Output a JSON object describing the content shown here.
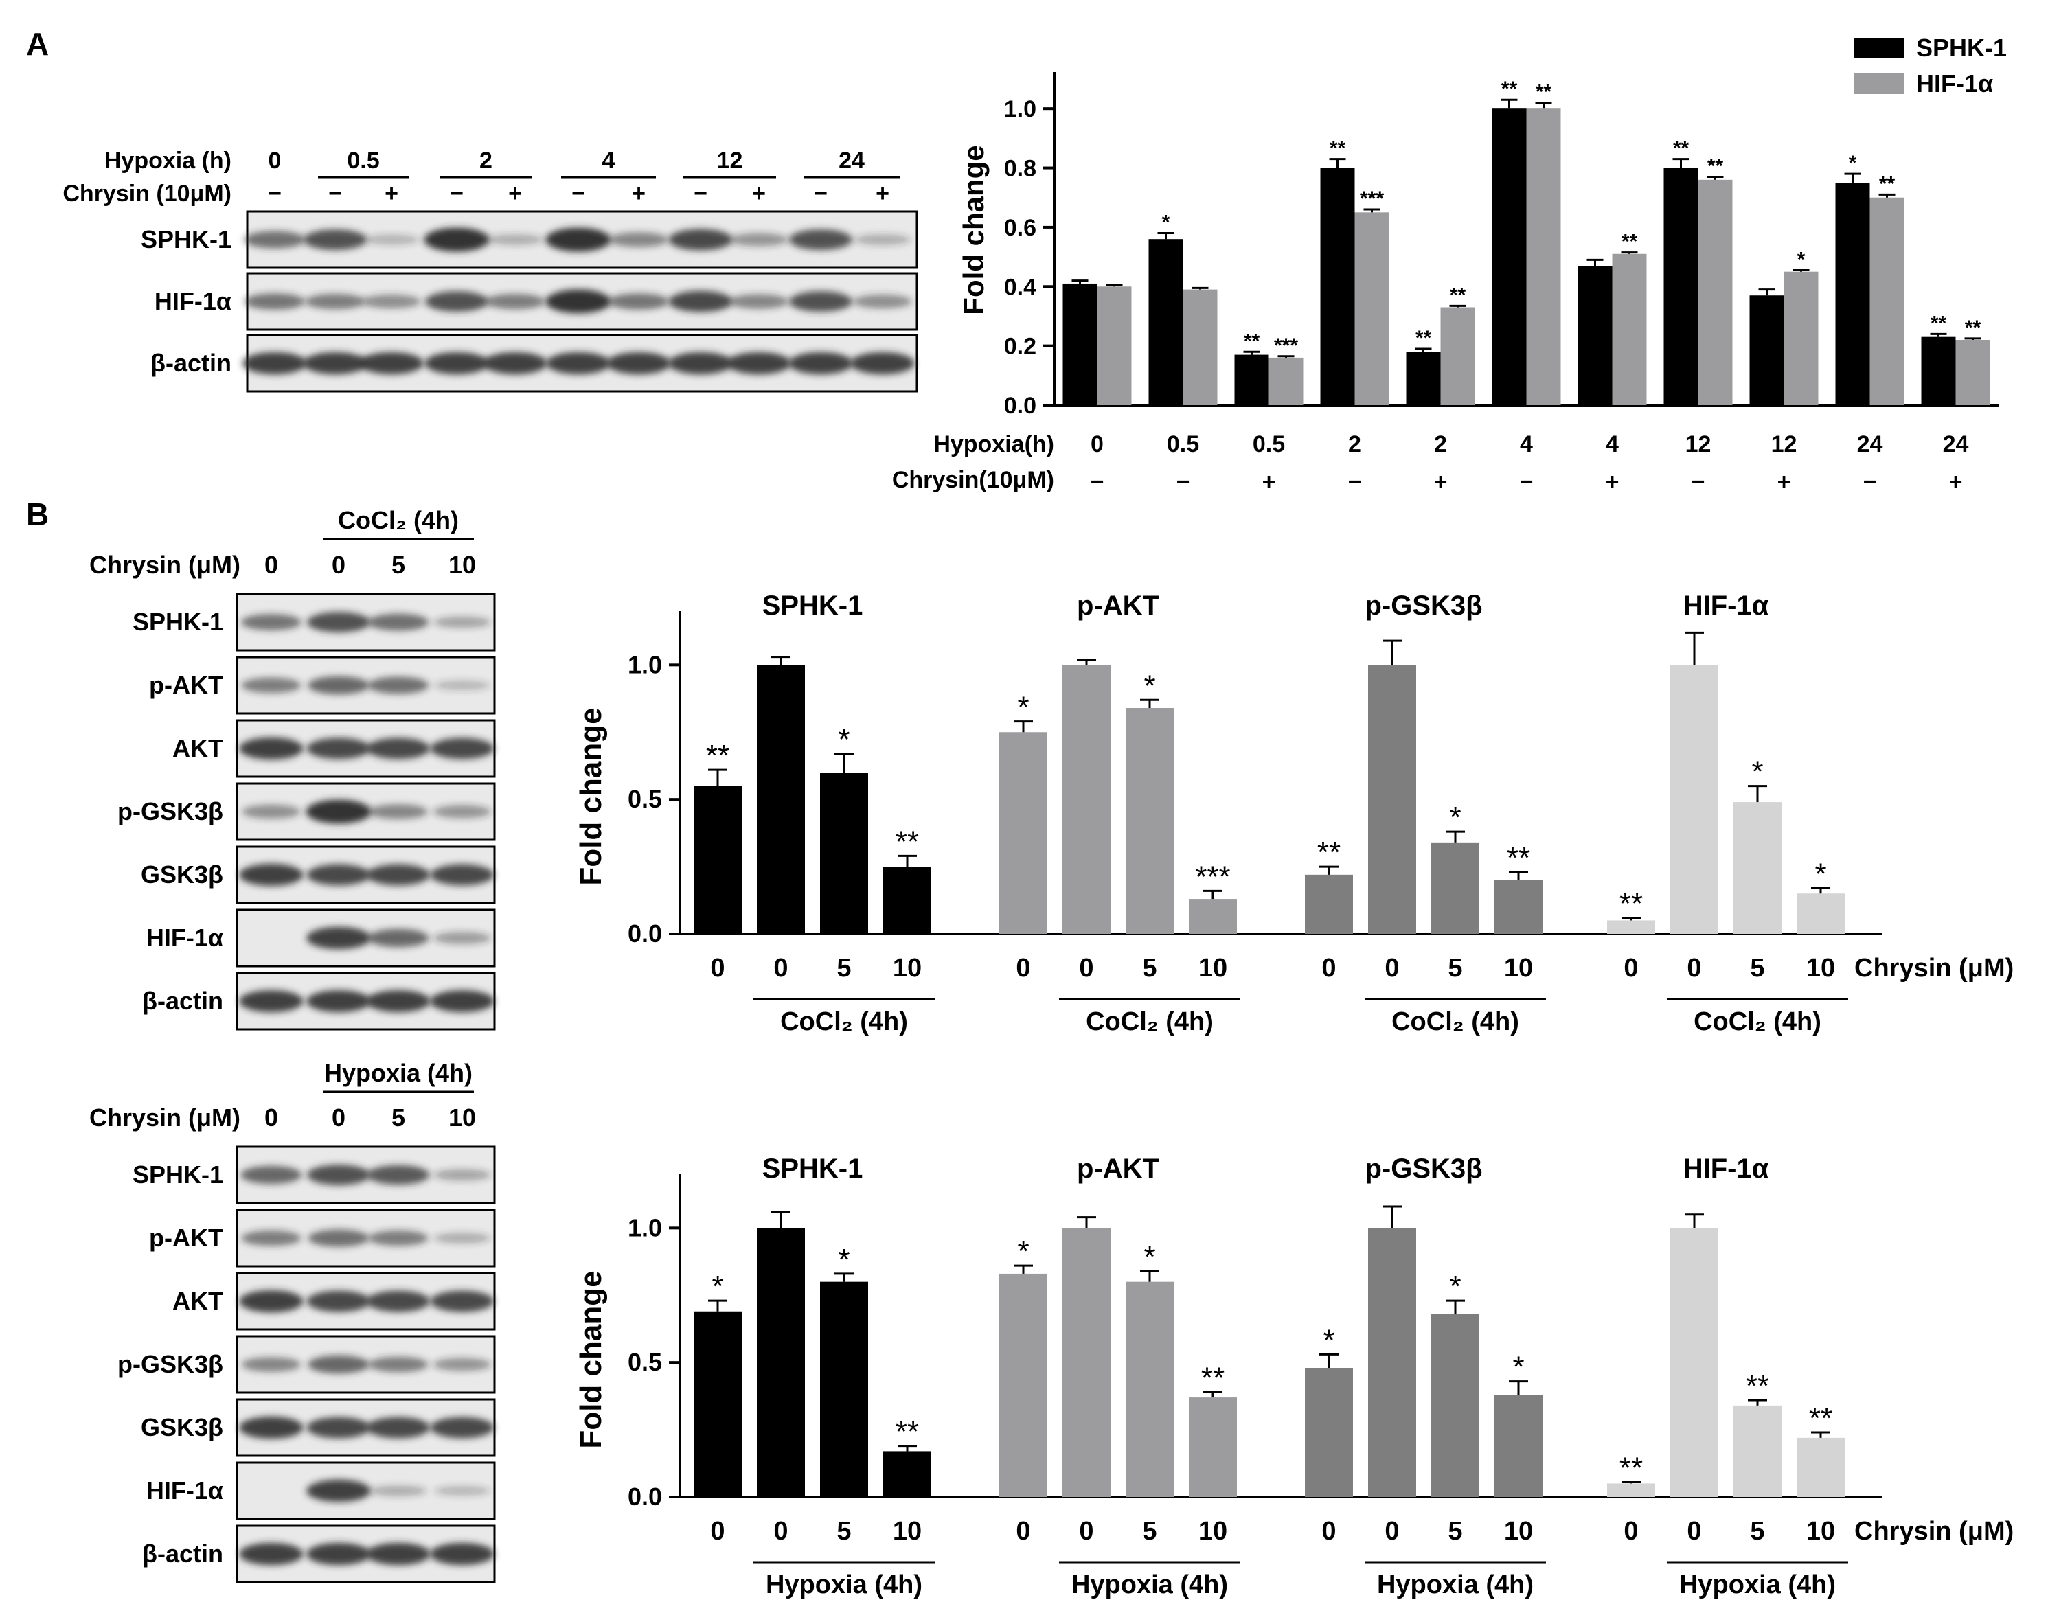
{
  "panels": {
    "a_label": "A",
    "b_label": "B"
  },
  "colors": {
    "black": "#000000",
    "mid_gray": "#9c9c9e",
    "dark_gray": "#7e7e7e",
    "light_gray": "#d4d4d4",
    "blot_bg": "#e9e9e9",
    "band": "#2a2a2a"
  },
  "blot_a": {
    "header_row1_label": "Hypoxia (h)",
    "header_row2_label": "Chrysin (10μM)",
    "time_labels": [
      "0",
      "0.5",
      "2",
      "4",
      "12",
      "24"
    ],
    "signs": [
      "−",
      "−",
      "+",
      "−",
      "+",
      "−",
      "+",
      "−",
      "+",
      "−",
      "+"
    ],
    "rows": [
      "SPHK-1",
      "HIF-1α",
      "β-actin"
    ],
    "intensity": [
      [
        0.55,
        0.75,
        0.12,
        0.95,
        0.15,
        0.95,
        0.4,
        0.8,
        0.3,
        0.75,
        0.15
      ],
      [
        0.5,
        0.45,
        0.35,
        0.75,
        0.45,
        0.95,
        0.5,
        0.8,
        0.4,
        0.75,
        0.35
      ],
      [
        0.85,
        0.85,
        0.85,
        0.85,
        0.85,
        0.85,
        0.85,
        0.85,
        0.85,
        0.85,
        0.85
      ]
    ]
  },
  "blot_b1": {
    "treatment_label": "CoCl₂ (4h)",
    "conc_label": "Chrysin (μM)",
    "conc": [
      "0",
      "0",
      "5",
      "10"
    ],
    "rows": [
      "SPHK-1",
      "p-AKT",
      "AKT",
      "p-GSK3β",
      "GSK3β",
      "HIF-1α",
      "β-actin"
    ],
    "intensity": [
      [
        0.5,
        0.75,
        0.55,
        0.2
      ],
      [
        0.45,
        0.6,
        0.55,
        0.1
      ],
      [
        0.85,
        0.8,
        0.8,
        0.8
      ],
      [
        0.35,
        0.95,
        0.4,
        0.3
      ],
      [
        0.85,
        0.8,
        0.8,
        0.8
      ],
      [
        0.0,
        0.85,
        0.6,
        0.25
      ],
      [
        0.85,
        0.85,
        0.85,
        0.85
      ]
    ]
  },
  "blot_b2": {
    "treatment_label": "Hypoxia (4h)",
    "conc_label": "Chrysin (μM)",
    "conc": [
      "0",
      "0",
      "5",
      "10"
    ],
    "rows": [
      "SPHK-1",
      "p-AKT",
      "AKT",
      "p-GSK3β",
      "GSK3β",
      "HIF-1α",
      "β-actin"
    ],
    "intensity": [
      [
        0.6,
        0.75,
        0.7,
        0.2
      ],
      [
        0.45,
        0.55,
        0.45,
        0.15
      ],
      [
        0.85,
        0.8,
        0.8,
        0.8
      ],
      [
        0.4,
        0.6,
        0.45,
        0.3
      ],
      [
        0.85,
        0.8,
        0.8,
        0.8
      ],
      [
        0.0,
        0.85,
        0.15,
        0.1
      ],
      [
        0.85,
        0.85,
        0.85,
        0.85
      ]
    ]
  },
  "chart_data": [
    {
      "type": "bar",
      "id": "A",
      "ylabel": "Fold change",
      "ylim": [
        0,
        1.1
      ],
      "yticks": [
        "0.0",
        "0.2",
        "0.4",
        "0.6",
        "0.8",
        "1.0"
      ],
      "row1_label": "Hypoxia(h)",
      "row2_label": "Chrysin(10μM)",
      "categories": [
        "0",
        "0.5",
        "0.5",
        "2",
        "2",
        "4",
        "4",
        "12",
        "12",
        "24",
        "24"
      ],
      "chrysin": [
        "−",
        "−",
        "+",
        "−",
        "+",
        "−",
        "+",
        "−",
        "+",
        "−",
        "+"
      ],
      "legend_position": "top-right",
      "series": [
        {
          "name": "SPHK-1",
          "color": "#000000",
          "values": [
            0.41,
            0.56,
            0.17,
            0.8,
            0.18,
            1.0,
            0.47,
            0.8,
            0.37,
            0.75,
            0.23
          ],
          "errors": [
            0.01,
            0.02,
            0.01,
            0.03,
            0.01,
            0.03,
            0.02,
            0.03,
            0.02,
            0.03,
            0.01
          ],
          "stars": [
            "",
            "*",
            "**",
            "**",
            "**",
            "**",
            "",
            "**",
            "",
            "*",
            "**"
          ]
        },
        {
          "name": "HIF-1α",
          "color": "#9c9c9e",
          "values": [
            0.4,
            0.39,
            0.16,
            0.65,
            0.33,
            1.0,
            0.51,
            0.76,
            0.45,
            0.7,
            0.22
          ],
          "errors": [
            0.005,
            0.005,
            0.005,
            0.01,
            0.005,
            0.02,
            0.005,
            0.01,
            0.005,
            0.01,
            0.005
          ],
          "stars": [
            "",
            "",
            "***",
            "***",
            "**",
            "**",
            "**",
            "**",
            "*",
            "**",
            "**"
          ]
        }
      ]
    },
    {
      "type": "bar",
      "id": "B-CoCl2",
      "ylabel": "Fold change",
      "ylim": [
        0,
        1.2
      ],
      "yticks": [
        "0.0",
        "0.5",
        "1.0"
      ],
      "treatment_label": "CoCl₂ (4h)",
      "x_axis_label": "Chrysin (μM)",
      "groups": [
        {
          "title": "SPHK-1",
          "color": "#000000",
          "categories": [
            "0",
            "0",
            "5",
            "10"
          ],
          "values": [
            0.55,
            1.0,
            0.6,
            0.25
          ],
          "errors": [
            0.06,
            0.03,
            0.07,
            0.04
          ],
          "stars": [
            "**",
            "",
            "*",
            "**"
          ]
        },
        {
          "title": "p-AKT",
          "color": "#9c9c9e",
          "categories": [
            "0",
            "0",
            "5",
            "10"
          ],
          "values": [
            0.75,
            1.0,
            0.84,
            0.13
          ],
          "errors": [
            0.04,
            0.02,
            0.03,
            0.03
          ],
          "stars": [
            "*",
            "",
            "*",
            "***"
          ]
        },
        {
          "title": "p-GSK3β",
          "color": "#7e7e7e",
          "categories": [
            "0",
            "0",
            "5",
            "10"
          ],
          "values": [
            0.22,
            1.0,
            0.34,
            0.2
          ],
          "errors": [
            0.03,
            0.09,
            0.04,
            0.03
          ],
          "stars": [
            "**",
            "",
            "*",
            "**"
          ]
        },
        {
          "title": "HIF-1α",
          "color": "#d4d4d4",
          "categories": [
            "0",
            "0",
            "5",
            "10"
          ],
          "values": [
            0.05,
            1.0,
            0.49,
            0.15
          ],
          "errors": [
            0.01,
            0.12,
            0.06,
            0.02
          ],
          "stars": [
            "**",
            "",
            "*",
            "*"
          ]
        }
      ]
    },
    {
      "type": "bar",
      "id": "B-Hypoxia",
      "ylabel": "Fold change",
      "ylim": [
        0,
        1.2
      ],
      "yticks": [
        "0.0",
        "0.5",
        "1.0"
      ],
      "treatment_label": "Hypoxia (4h)",
      "x_axis_label": "Chrysin (μM)",
      "groups": [
        {
          "title": "SPHK-1",
          "color": "#000000",
          "categories": [
            "0",
            "0",
            "5",
            "10"
          ],
          "values": [
            0.69,
            1.0,
            0.8,
            0.17
          ],
          "errors": [
            0.04,
            0.06,
            0.03,
            0.02
          ],
          "stars": [
            "*",
            "",
            "*",
            "**"
          ]
        },
        {
          "title": "p-AKT",
          "color": "#9c9c9e",
          "categories": [
            "0",
            "0",
            "5",
            "10"
          ],
          "values": [
            0.83,
            1.0,
            0.8,
            0.37
          ],
          "errors": [
            0.03,
            0.04,
            0.04,
            0.02
          ],
          "stars": [
            "*",
            "",
            "*",
            "**"
          ]
        },
        {
          "title": "p-GSK3β",
          "color": "#7e7e7e",
          "categories": [
            "0",
            "0",
            "5",
            "10"
          ],
          "values": [
            0.48,
            1.0,
            0.68,
            0.38
          ],
          "errors": [
            0.05,
            0.08,
            0.05,
            0.05
          ],
          "stars": [
            "*",
            "",
            "*",
            "*"
          ]
        },
        {
          "title": "HIF-1α",
          "color": "#d4d4d4",
          "categories": [
            "0",
            "0",
            "5",
            "10"
          ],
          "values": [
            0.05,
            1.0,
            0.34,
            0.22
          ],
          "errors": [
            0.005,
            0.05,
            0.02,
            0.02
          ],
          "stars": [
            "**",
            "",
            "**",
            "**"
          ]
        }
      ]
    }
  ]
}
